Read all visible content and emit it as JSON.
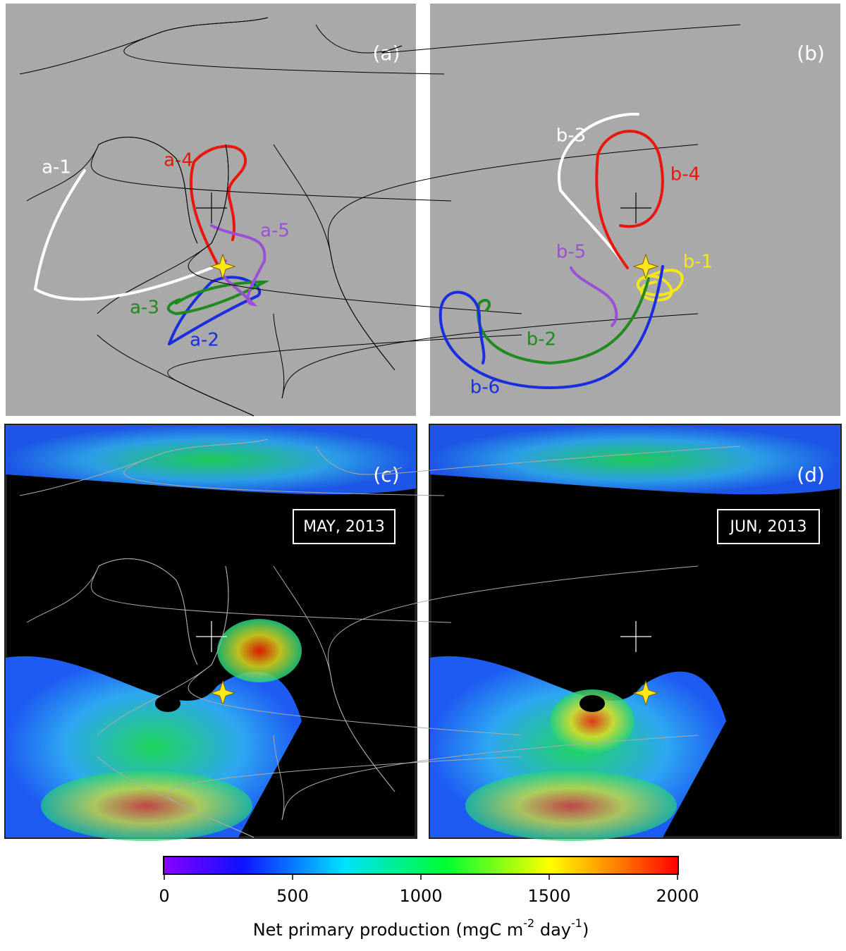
{
  "panels": [
    {
      "label": "(a)",
      "trajectories": [
        {
          "label": "a-1",
          "color": "#ffffff"
        },
        {
          "label": "a-2",
          "color": "#1a2ee0"
        },
        {
          "label": "a-3",
          "color": "#1f8a1f"
        },
        {
          "label": "a-4",
          "color": "#e8160c"
        },
        {
          "label": "a-5",
          "color": "#9b4fd6"
        }
      ]
    },
    {
      "label": "(b)",
      "trajectories": [
        {
          "label": "b-1",
          "color": "#f5e61a"
        },
        {
          "label": "b-2",
          "color": "#1f8a1f"
        },
        {
          "label": "b-3",
          "color": "#ffffff"
        },
        {
          "label": "b-4",
          "color": "#e8160c"
        },
        {
          "label": "b-5",
          "color": "#9b4fd6"
        },
        {
          "label": "b-6",
          "color": "#1a2ee0"
        }
      ]
    },
    {
      "label": "(c)",
      "date": "MAY, 2013"
    },
    {
      "label": "(d)",
      "date": "JUN, 2013"
    }
  ],
  "colorbar": {
    "lim": [
      0,
      2000
    ],
    "ticks": [
      0,
      500,
      1000,
      1500,
      2000
    ],
    "label_parts": [
      "Net primary production (mgC m",
      "-2",
      " day",
      "-1",
      ")"
    ]
  }
}
